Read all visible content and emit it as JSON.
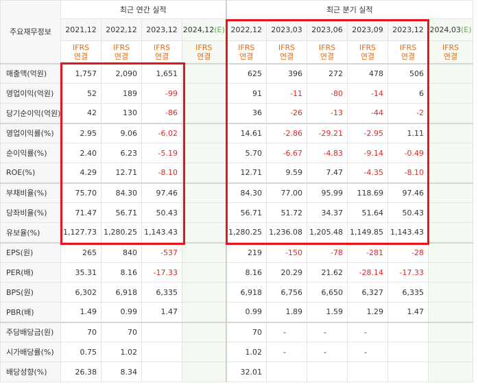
{
  "header": {
    "row_label": "주요재무정보",
    "annual_group": "최근 연간 실적",
    "quarter_group": "최근 분기 실적",
    "annual_periods": [
      "2021,12",
      "2022,12",
      "2023,12",
      "2024,12"
    ],
    "annual_est_suffix": "(E)",
    "quarter_periods": [
      "2022,12",
      "2023,03",
      "2023,06",
      "2023,09",
      "2023,12",
      "2024,03"
    ],
    "quarter_est_suffix": "(E)",
    "ifrs_line1": "IFRS",
    "ifrs_line2": "연결"
  },
  "rows": [
    {
      "label": "매출액(억원)",
      "annual": [
        "1,757",
        "2,090",
        "1,651",
        ""
      ],
      "quarter": [
        "625",
        "396",
        "272",
        "478",
        "506",
        ""
      ]
    },
    {
      "label": "영업이익(억원)",
      "annual": [
        "52",
        "189",
        "-99",
        ""
      ],
      "quarter": [
        "91",
        "-11",
        "-80",
        "-14",
        "6",
        ""
      ]
    },
    {
      "label": "당기순이익(억원)",
      "annual": [
        "42",
        "130",
        "-86",
        ""
      ],
      "quarter": [
        "36",
        "-26",
        "-13",
        "-44",
        "-2",
        ""
      ]
    },
    {
      "label": "영업이익률(%)",
      "annual": [
        "2.95",
        "9.06",
        "-6.02",
        ""
      ],
      "quarter": [
        "14.61",
        "-2.86",
        "-29.21",
        "-2.95",
        "1.11",
        ""
      ]
    },
    {
      "label": "순이익률(%)",
      "annual": [
        "2.40",
        "6.23",
        "-5.19",
        ""
      ],
      "quarter": [
        "5.70",
        "-6.67",
        "-4.83",
        "-9.14",
        "-0.49",
        ""
      ]
    },
    {
      "label": "ROE(%)",
      "annual": [
        "4.29",
        "12.71",
        "-8.10",
        ""
      ],
      "quarter": [
        "12.71",
        "9.59",
        "7.47",
        "-4.35",
        "-8.10",
        ""
      ]
    },
    {
      "label": "부채비율(%)",
      "annual": [
        "75.70",
        "84.30",
        "97.46",
        ""
      ],
      "quarter": [
        "84.30",
        "77.00",
        "95.99",
        "118.69",
        "97.46",
        ""
      ]
    },
    {
      "label": "당좌비율(%)",
      "annual": [
        "71.47",
        "56.71",
        "50.43",
        ""
      ],
      "quarter": [
        "56.71",
        "51.72",
        "34.37",
        "51.64",
        "50.43",
        ""
      ]
    },
    {
      "label": "유보율(%)",
      "annual": [
        "1,127.73",
        "1,280.25",
        "1,143.43",
        ""
      ],
      "quarter": [
        "1,280.25",
        "1,236.08",
        "1,205.48",
        "1,149.85",
        "1,143.43",
        ""
      ]
    },
    {
      "label": "EPS(원)",
      "annual": [
        "265",
        "840",
        "-537",
        ""
      ],
      "quarter": [
        "219",
        "-150",
        "-78",
        "-281",
        "-28",
        ""
      ]
    },
    {
      "label": "PER(배)",
      "annual": [
        "35.31",
        "8.16",
        "-17.33",
        ""
      ],
      "quarter": [
        "8.16",
        "20.29",
        "21.62",
        "-28.14",
        "-17.33",
        ""
      ]
    },
    {
      "label": "BPS(원)",
      "annual": [
        "6,302",
        "6,918",
        "6,335",
        ""
      ],
      "quarter": [
        "6,918",
        "6,756",
        "6,650",
        "6,327",
        "6,335",
        ""
      ]
    },
    {
      "label": "PBR(배)",
      "annual": [
        "1.49",
        "0.99",
        "1.47",
        ""
      ],
      "quarter": [
        "0.99",
        "1.89",
        "1.59",
        "1.29",
        "1.47",
        ""
      ]
    },
    {
      "label": "주당배당금(원)",
      "annual": [
        "70",
        "70",
        "",
        ""
      ],
      "quarter": [
        "70",
        "-",
        "-",
        "-",
        "",
        ""
      ]
    },
    {
      "label": "시가배당률(%)",
      "annual": [
        "0.75",
        "1.02",
        "",
        ""
      ],
      "quarter": [
        "1.02",
        "-",
        "-",
        "-",
        "",
        ""
      ]
    },
    {
      "label": "배당성향(%)",
      "annual": [
        "26.38",
        "8.34",
        "",
        ""
      ],
      "quarter": [
        "32.01",
        "",
        "",
        "",
        "",
        ""
      ]
    }
  ],
  "colors": {
    "negative": "#d42a2a",
    "ifrs": "#e86b12",
    "estimate": "#6aa84f",
    "highlight_box": "#e8141c"
  }
}
